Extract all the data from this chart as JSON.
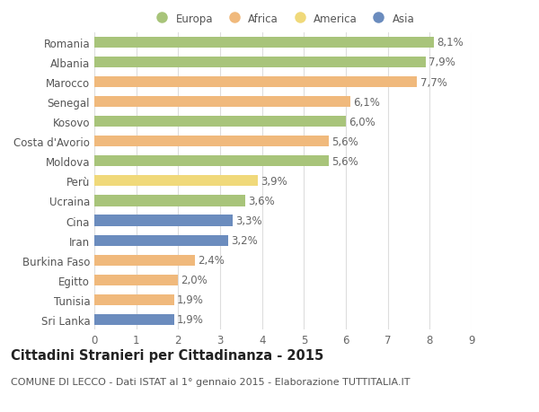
{
  "categories": [
    "Romania",
    "Albania",
    "Marocco",
    "Senegal",
    "Kosovo",
    "Costa d'Avorio",
    "Moldova",
    "Perù",
    "Ucraina",
    "Cina",
    "Iran",
    "Burkina Faso",
    "Egitto",
    "Tunisia",
    "Sri Lanka"
  ],
  "values": [
    8.1,
    7.9,
    7.7,
    6.1,
    6.0,
    5.6,
    5.6,
    3.9,
    3.6,
    3.3,
    3.2,
    2.4,
    2.0,
    1.9,
    1.9
  ],
  "continents": [
    "Europa",
    "Europa",
    "Africa",
    "Africa",
    "Europa",
    "Africa",
    "Europa",
    "America",
    "Europa",
    "Asia",
    "Asia",
    "Africa",
    "Africa",
    "Africa",
    "Asia"
  ],
  "continent_colors": {
    "Europa": "#a8c47a",
    "Africa": "#f0b97c",
    "America": "#f0d97a",
    "Asia": "#6b8cbe"
  },
  "legend_order": [
    "Europa",
    "Africa",
    "America",
    "Asia"
  ],
  "title": "Cittadini Stranieri per Cittadinanza - 2015",
  "subtitle": "COMUNE DI LECCO - Dati ISTAT al 1° gennaio 2015 - Elaborazione TUTTITALIA.IT",
  "xlim": [
    0,
    9
  ],
  "xticks": [
    0,
    1,
    2,
    3,
    4,
    5,
    6,
    7,
    8,
    9
  ],
  "bar_height": 0.55,
  "label_fontsize": 8.5,
  "title_fontsize": 10.5,
  "subtitle_fontsize": 8,
  "tick_fontsize": 8.5,
  "background_color": "#ffffff",
  "grid_color": "#dddddd"
}
